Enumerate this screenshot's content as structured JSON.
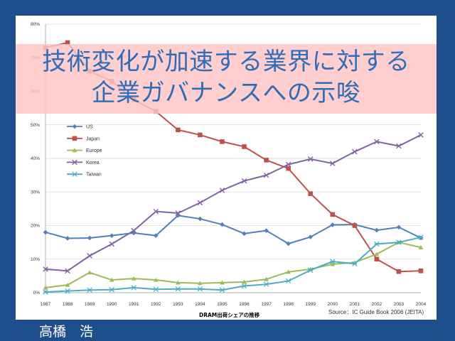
{
  "slide": {
    "title_line1": "技術変化が加速する業界に対する",
    "title_line2": "企業ガバナンスへの示唆",
    "author": "高橋　浩"
  },
  "chart_data": {
    "type": "line",
    "title": "",
    "caption": "DRAM出荷シェアの推移",
    "source": "Source：IC Guide Book 2006 (JEITA)",
    "xlabel": "",
    "ylabel": "",
    "ylim": [
      0,
      80
    ],
    "yticks": [
      "0%",
      "10%",
      "20%",
      "30%",
      "40%",
      "50%",
      "60%",
      "70%",
      "80%"
    ],
    "categories": [
      "1987",
      "1988",
      "1989",
      "1990",
      "1991",
      "1992",
      "1993",
      "1994",
      "1995",
      "1996",
      "1997",
      "1998",
      "1999",
      "2000",
      "2001",
      "2002",
      "2003",
      "2004"
    ],
    "series": [
      {
        "name": "US",
        "color": "#4f81bd",
        "marker": "diamond",
        "values": [
          18,
          16.2,
          16.3,
          17,
          17.8,
          17,
          23,
          22,
          20.3,
          17.6,
          18.5,
          14.6,
          16.6,
          20.2,
          20.3,
          18.6,
          19.5,
          16.3
        ]
      },
      {
        "name": "Japan",
        "color": "#c0504d",
        "marker": "square",
        "values": [
          73,
          74.5,
          66,
          63,
          57.5,
          54,
          48.5,
          47,
          45,
          43.5,
          39.5,
          37,
          29.5,
          23.3,
          20,
          10,
          6.3,
          6.5
        ]
      },
      {
        "name": "Europe",
        "color": "#9bbb59",
        "marker": "triangle",
        "values": [
          1.5,
          2.3,
          6,
          3.8,
          4.2,
          3.8,
          3,
          2.8,
          3,
          3.2,
          4,
          6.2,
          7,
          8.5,
          9,
          11.5,
          15,
          13.5
        ]
      },
      {
        "name": "Korea",
        "color": "#8064a2",
        "marker": "x",
        "values": [
          7,
          6.5,
          11,
          14.5,
          18.5,
          24.2,
          23.7,
          26.8,
          30.5,
          33.3,
          35,
          38.2,
          39.8,
          38.5,
          42,
          45,
          43.7,
          47
        ]
      },
      {
        "name": "Taiwan",
        "color": "#4bacc6",
        "marker": "asterisk",
        "values": [
          0.2,
          0.5,
          0.8,
          0.9,
          1.5,
          1,
          1.1,
          1.1,
          0.8,
          2,
          2.5,
          3.5,
          6.7,
          9.3,
          8.6,
          14.5,
          15,
          16.5
        ]
      }
    ]
  }
}
